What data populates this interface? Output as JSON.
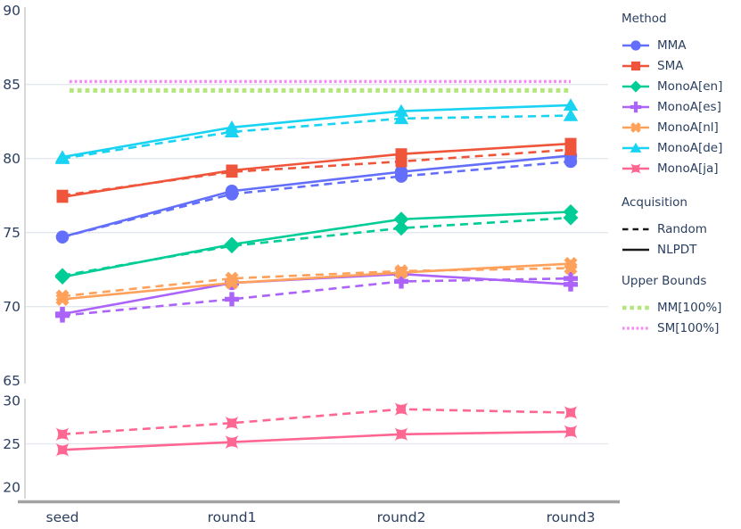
{
  "page": {
    "background": "#ffffff"
  },
  "colors": {
    "text": "#2a3f5f",
    "grid": "#e3e7ee",
    "axis_line": "#c9c9c9",
    "baseline": "#a3a3a3",
    "legend_line": "#1a1a1a"
  },
  "chart_data": {
    "type": "line",
    "title": "",
    "xlabel": "",
    "ylabel": "",
    "x_categories": [
      "seed",
      "round1",
      "round2",
      "round3"
    ],
    "y_axis": {
      "broken_axis": true,
      "top_ticks": [
        90,
        85,
        80,
        75,
        70,
        65
      ],
      "bottom_ticks": [
        30,
        25,
        20
      ],
      "top_range": [
        65,
        90
      ],
      "bottom_range": [
        20,
        30
      ],
      "gridline_values": [
        85,
        80,
        75,
        70,
        25
      ]
    },
    "legend": {
      "method_title": "Method",
      "acquisition_title": "Acquisition",
      "upper_bounds_title": "Upper Bounds",
      "acquisition_items": [
        {
          "label": "Random",
          "line_style": "dashed"
        },
        {
          "label": "NLPDT",
          "line_style": "solid"
        }
      ]
    },
    "series": [
      {
        "name": "MMA",
        "color": "#636EFA",
        "marker": "circle",
        "values_nlpdt": [
          74.7,
          77.8,
          79.1,
          80.2
        ],
        "values_random": [
          74.7,
          77.6,
          78.8,
          79.8
        ]
      },
      {
        "name": "SMA",
        "color": "#EF553B",
        "marker": "square",
        "values_nlpdt": [
          77.4,
          79.2,
          80.3,
          81.0
        ],
        "values_random": [
          77.5,
          79.1,
          79.8,
          80.6
        ]
      },
      {
        "name": "MonoA[en]",
        "color": "#00CC96",
        "marker": "diamond",
        "values_nlpdt": [
          72.0,
          74.2,
          75.9,
          76.4
        ],
        "values_random": [
          72.1,
          74.1,
          75.3,
          76.0
        ]
      },
      {
        "name": "MonoA[es]",
        "color": "#AB63FA",
        "marker": "cross",
        "values_nlpdt": [
          69.5,
          71.6,
          72.2,
          71.5
        ],
        "values_random": [
          69.4,
          70.5,
          71.7,
          71.9
        ]
      },
      {
        "name": "MonoA[nl]",
        "color": "#FFA15A",
        "marker": "x",
        "values_nlpdt": [
          70.5,
          71.6,
          72.3,
          72.9
        ],
        "values_random": [
          70.7,
          71.9,
          72.4,
          72.6
        ]
      },
      {
        "name": "MonoA[de]",
        "color": "#19D3F3",
        "marker": "triangle-up",
        "values_nlpdt": [
          80.1,
          82.1,
          83.2,
          83.6
        ],
        "values_random": [
          80.0,
          81.8,
          82.7,
          82.9
        ]
      },
      {
        "name": "MonoA[ja]",
        "color": "#FF6692",
        "marker": "star-square",
        "values_nlpdt": [
          24.3,
          25.2,
          26.1,
          26.4
        ],
        "values_random": [
          26.1,
          27.4,
          29.0,
          28.6
        ]
      }
    ],
    "upper_bounds": [
      {
        "name": "MM[100%]",
        "color": "#B4E67E",
        "value": 84.6,
        "dot_style": "thick"
      },
      {
        "name": "SM[100%]",
        "color": "#F787F3",
        "value": 85.2,
        "dot_style": "thin"
      }
    ]
  }
}
